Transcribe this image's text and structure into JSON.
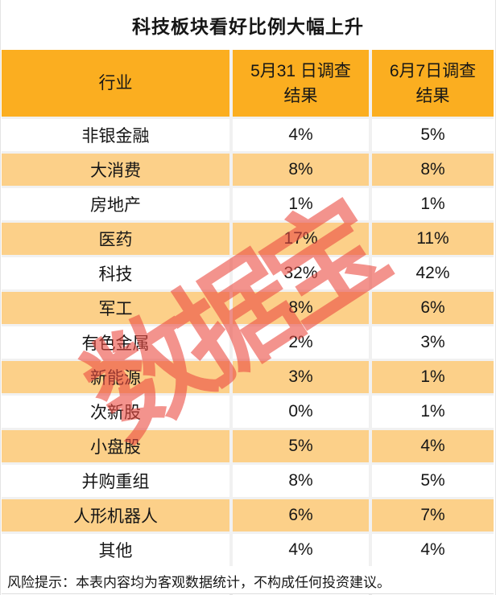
{
  "title": "科技板块看好比例大幅上升",
  "table": {
    "columns": [
      "行业",
      "5月31 日调查\n结果",
      "6月7日调查\n结果"
    ],
    "rows": [
      {
        "industry": "非银金融",
        "may31": "4%",
        "jun7": "5%"
      },
      {
        "industry": "大消费",
        "may31": "8%",
        "jun7": "8%"
      },
      {
        "industry": "房地产",
        "may31": "1%",
        "jun7": "1%"
      },
      {
        "industry": "医药",
        "may31": "17%",
        "jun7": "11%"
      },
      {
        "industry": "科技",
        "may31": "32%",
        "jun7": "42%"
      },
      {
        "industry": "军工",
        "may31": "8%",
        "jun7": "6%"
      },
      {
        "industry": "有色金属",
        "may31": "2%",
        "jun7": "3%"
      },
      {
        "industry": "新能源",
        "may31": "3%",
        "jun7": "1%"
      },
      {
        "industry": "次新股",
        "may31": "0%",
        "jun7": "1%"
      },
      {
        "industry": "小盘股",
        "may31": "5%",
        "jun7": "4%"
      },
      {
        "industry": "并购重组",
        "may31": "8%",
        "jun7": "5%"
      },
      {
        "industry": "人形机器人",
        "may31": "6%",
        "jun7": "7%"
      },
      {
        "industry": "其他",
        "may31": "4%",
        "jun7": "4%"
      }
    ]
  },
  "footer": {
    "risk_note": "风险提示：本表内容均为客观数据统计，不构成任何投资建议。"
  },
  "watermark": {
    "text": "数据宝"
  },
  "colors": {
    "header_bg": "#FBAE20",
    "row_alt_bg": "#FCD089",
    "grid_line": "#F1F1F1",
    "watermark_color": "#EC4C42",
    "text": "#161616"
  },
  "chart_data": {
    "type": "table",
    "title": "科技板块看好比例大幅上升",
    "categories": [
      "非银金融",
      "大消费",
      "房地产",
      "医药",
      "科技",
      "军工",
      "有色金属",
      "新能源",
      "次新股",
      "小盘股",
      "并购重组",
      "人形机器人",
      "其他"
    ],
    "series": [
      {
        "name": "5月31 日调查结果",
        "values": [
          4,
          8,
          1,
          17,
          32,
          8,
          2,
          3,
          0,
          5,
          8,
          6,
          4
        ]
      },
      {
        "name": "6月7日调查结果",
        "values": [
          5,
          8,
          1,
          11,
          42,
          6,
          3,
          1,
          1,
          4,
          5,
          7,
          4
        ]
      }
    ],
    "unit": "%",
    "note": "风险提示：本表内容均为客观数据统计，不构成任何投资建议。"
  }
}
